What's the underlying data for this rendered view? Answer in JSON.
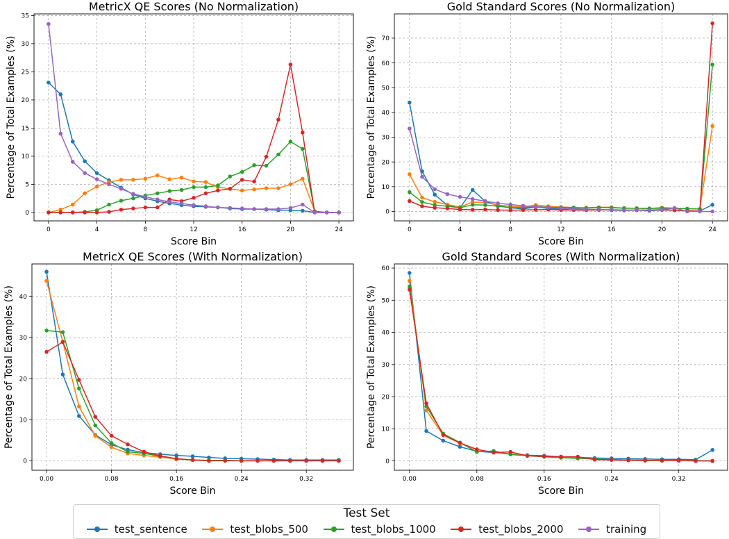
{
  "legend": {
    "title": "Test Set",
    "items": [
      {
        "name": "test_sentence",
        "color": "#1f77b4"
      },
      {
        "name": "test_blobs_500",
        "color": "#ff7f0e"
      },
      {
        "name": "test_blobs_1000",
        "color": "#2ca02c"
      },
      {
        "name": "test_blobs_2000",
        "color": "#d62728"
      },
      {
        "name": "training",
        "color": "#9467bd"
      }
    ]
  },
  "chart_data": [
    {
      "type": "line",
      "title": "MetricX QE Scores (No Normalization)",
      "xlabel": "Score Bin",
      "ylabel": "Percentage of Total Examples (%)",
      "xlim": [
        -1.2,
        25.2
      ],
      "ylim": [
        -1.5,
        35.3
      ],
      "xticks": [
        0,
        4,
        8,
        12,
        16,
        20,
        24
      ],
      "yticks": [
        0,
        5,
        10,
        15,
        20,
        25,
        30,
        35
      ],
      "grid": true,
      "x": [
        0,
        1,
        2,
        3,
        4,
        5,
        6,
        7,
        8,
        9,
        10,
        11,
        12,
        13,
        14,
        15,
        16,
        17,
        18,
        19,
        20,
        21,
        22,
        23,
        24
      ],
      "series": [
        {
          "name": "test_sentence",
          "values": [
            23.1,
            21.0,
            12.6,
            9.1,
            7.0,
            5.7,
            4.4,
            3.2,
            2.5,
            2.0,
            1.6,
            1.3,
            1.1,
            1.0,
            0.9,
            0.7,
            0.6,
            0.6,
            0.5,
            0.4,
            0.4,
            0.3,
            0.0,
            0.0,
            0.0
          ]
        },
        {
          "name": "test_blobs_500",
          "values": [
            0.0,
            0.5,
            1.4,
            3.4,
            4.6,
            5.4,
            5.8,
            5.8,
            6.0,
            6.6,
            5.9,
            6.2,
            5.5,
            5.4,
            4.5,
            4.2,
            3.9,
            4.1,
            4.3,
            4.3,
            5.0,
            6.0,
            0.2,
            0.0,
            0.0
          ]
        },
        {
          "name": "test_blobs_1000",
          "values": [
            0.0,
            0.0,
            0.0,
            0.1,
            0.4,
            1.4,
            2.1,
            2.5,
            3.0,
            3.4,
            3.8,
            4.0,
            4.5,
            4.5,
            4.8,
            6.4,
            7.2,
            8.4,
            8.3,
            10.3,
            12.6,
            11.3,
            0.2,
            0.0,
            0.0
          ]
        },
        {
          "name": "test_blobs_2000",
          "values": [
            0.0,
            0.0,
            0.0,
            0.0,
            0.0,
            0.1,
            0.5,
            0.7,
            0.9,
            0.9,
            2.3,
            2.0,
            2.6,
            3.4,
            3.9,
            4.2,
            5.8,
            5.5,
            9.9,
            16.5,
            26.3,
            14.2,
            0.0,
            0.0,
            0.0
          ]
        },
        {
          "name": "training",
          "values": [
            33.5,
            14.0,
            9.0,
            7.0,
            5.9,
            5.0,
            4.2,
            3.3,
            2.8,
            2.3,
            1.9,
            1.6,
            1.3,
            1.1,
            0.9,
            0.8,
            0.7,
            0.6,
            0.6,
            0.6,
            0.8,
            1.4,
            0.0,
            0.0,
            0.0
          ]
        }
      ]
    },
    {
      "type": "line",
      "title": "Gold Standard Scores (No Normalization)",
      "xlabel": "Score Bin",
      "ylabel": "Percentage of Total Examples (%)",
      "xlim": [
        -1.2,
        25.2
      ],
      "ylim": [
        -3.8,
        79.8
      ],
      "xticks": [
        0,
        4,
        8,
        12,
        16,
        20,
        24
      ],
      "yticks": [
        0,
        10,
        20,
        30,
        40,
        50,
        60,
        70
      ],
      "grid": true,
      "x": [
        0,
        1,
        2,
        3,
        4,
        5,
        6,
        7,
        8,
        9,
        10,
        11,
        12,
        13,
        14,
        15,
        16,
        17,
        18,
        19,
        20,
        21,
        22,
        23,
        24
      ],
      "series": [
        {
          "name": "test_sentence",
          "values": [
            44.0,
            16.2,
            6.8,
            2.5,
            1.4,
            8.7,
            4.1,
            2.3,
            1.5,
            1.0,
            1.8,
            1.2,
            0.9,
            0.6,
            0.5,
            0.8,
            0.5,
            0.4,
            0.5,
            0.3,
            0.6,
            0.5,
            0.2,
            0.2,
            2.7
          ]
        },
        {
          "name": "test_blobs_500",
          "values": [
            15.0,
            5.6,
            3.9,
            2.8,
            1.8,
            3.8,
            3.6,
            2.6,
            2.1,
            1.8,
            2.6,
            2.1,
            1.8,
            1.6,
            1.5,
            1.7,
            1.7,
            1.4,
            1.3,
            1.2,
            1.6,
            1.4,
            1.1,
            1.0,
            34.5
          ]
        },
        {
          "name": "test_blobs_1000",
          "values": [
            7.8,
            3.8,
            2.6,
            2.1,
            1.5,
            2.7,
            2.6,
            2.1,
            1.6,
            1.5,
            2.0,
            1.7,
            1.6,
            1.5,
            1.4,
            1.6,
            1.5,
            1.3,
            1.3,
            1.2,
            1.3,
            1.2,
            1.1,
            1.0,
            59.3
          ]
        },
        {
          "name": "test_blobs_2000",
          "values": [
            4.2,
            2.1,
            1.5,
            1.2,
            0.8,
            0.7,
            0.8,
            0.6,
            0.5,
            0.6,
            0.7,
            0.8,
            0.6,
            0.6,
            0.6,
            0.6,
            0.7,
            0.5,
            0.6,
            0.5,
            0.7,
            0.5,
            0.3,
            0.2,
            76.0
          ]
        },
        {
          "name": "training",
          "values": [
            33.5,
            14.0,
            9.0,
            7.0,
            5.9,
            5.0,
            4.2,
            3.3,
            2.8,
            2.3,
            1.9,
            1.6,
            1.3,
            1.1,
            0.9,
            0.8,
            0.7,
            0.6,
            0.6,
            0.6,
            0.8,
            1.4,
            0.0,
            0.0,
            0.0
          ]
        }
      ]
    },
    {
      "type": "line",
      "title": "MetricX QE Scores (With Normalization)",
      "xlabel": "Score Bin",
      "ylabel": "Percentage of Total Examples (%)",
      "xlim": [
        -0.018,
        0.378
      ],
      "ylim": [
        -2.3,
        47.9
      ],
      "xticks": [
        0.0,
        0.08,
        0.16,
        0.24,
        0.32
      ],
      "xtick_labels": [
        "0.00",
        "0.08",
        "0.16",
        "0.24",
        "0.32"
      ],
      "yticks": [
        0,
        10,
        20,
        30,
        40
      ],
      "grid": true,
      "x": [
        0.0,
        0.02,
        0.04,
        0.06,
        0.08,
        0.1,
        0.12,
        0.14,
        0.16,
        0.18,
        0.2,
        0.22,
        0.24,
        0.26,
        0.28,
        0.3,
        0.32,
        0.34,
        0.36
      ],
      "series": [
        {
          "name": "test_sentence",
          "values": [
            46.0,
            21.0,
            10.9,
            6.3,
            3.9,
            2.7,
            2.0,
            1.6,
            1.3,
            1.1,
            0.8,
            0.6,
            0.5,
            0.4,
            0.3,
            0.2,
            0.2,
            0.2,
            0.2
          ]
        },
        {
          "name": "test_blobs_500",
          "values": [
            43.8,
            29.0,
            13.2,
            6.1,
            3.3,
            1.8,
            1.3,
            0.9,
            0.4,
            0.2,
            0.1,
            0.1,
            0.0,
            0.0,
            0.0,
            0.0,
            0.0,
            0.0,
            0.0
          ]
        },
        {
          "name": "test_blobs_1000",
          "values": [
            31.7,
            31.3,
            17.6,
            8.6,
            4.3,
            2.2,
            1.8,
            1.1,
            0.5,
            0.2,
            0.1,
            0.1,
            0.0,
            0.0,
            0.0,
            0.0,
            0.0,
            0.0,
            0.0
          ]
        },
        {
          "name": "test_blobs_2000",
          "values": [
            26.5,
            28.9,
            19.7,
            10.7,
            6.1,
            4.0,
            2.2,
            1.2,
            0.5,
            0.2,
            0.0,
            0.0,
            0.0,
            0.0,
            0.0,
            0.0,
            0.0,
            0.0,
            0.0
          ]
        }
      ]
    },
    {
      "type": "line",
      "title": "Gold Standard Scores (With Normalization)",
      "xlabel": "Score Bin",
      "ylabel": "Percentage of Total Examples (%)",
      "xlim": [
        -0.018,
        0.378
      ],
      "ylim": [
        -2.9,
        61.3
      ],
      "xticks": [
        0.0,
        0.08,
        0.16,
        0.24,
        0.32
      ],
      "xtick_labels": [
        "0.00",
        "0.08",
        "0.16",
        "0.24",
        "0.32"
      ],
      "yticks": [
        0,
        10,
        20,
        30,
        40,
        50,
        60
      ],
      "grid": true,
      "x": [
        0.0,
        0.02,
        0.04,
        0.06,
        0.08,
        0.1,
        0.12,
        0.14,
        0.16,
        0.18,
        0.2,
        0.22,
        0.24,
        0.26,
        0.28,
        0.3,
        0.32,
        0.34,
        0.36
      ],
      "series": [
        {
          "name": "test_sentence",
          "values": [
            58.5,
            9.3,
            6.3,
            4.4,
            3.0,
            2.6,
            2.1,
            1.8,
            1.6,
            1.3,
            1.1,
            0.9,
            0.8,
            0.7,
            0.6,
            0.5,
            0.5,
            0.4,
            3.4
          ]
        },
        {
          "name": "test_blobs_500",
          "values": [
            56.0,
            15.7,
            8.0,
            5.5,
            3.5,
            2.7,
            2.2,
            1.7,
            1.3,
            1.1,
            0.9,
            0.6,
            0.4,
            0.3,
            0.2,
            0.1,
            0.1,
            0.1,
            0.0
          ]
        },
        {
          "name": "test_blobs_1000",
          "values": [
            54.3,
            17.0,
            8.5,
            5.7,
            2.8,
            3.1,
            2.0,
            1.6,
            1.3,
            1.0,
            0.8,
            0.6,
            0.4,
            0.3,
            0.2,
            0.1,
            0.1,
            0.1,
            0.0
          ]
        },
        {
          "name": "test_blobs_2000",
          "values": [
            53.3,
            17.9,
            8.1,
            5.6,
            3.6,
            2.6,
            2.8,
            1.6,
            1.4,
            1.3,
            1.3,
            0.4,
            0.3,
            0.2,
            0.1,
            0.1,
            0.1,
            0.0,
            0.0
          ]
        }
      ]
    }
  ]
}
